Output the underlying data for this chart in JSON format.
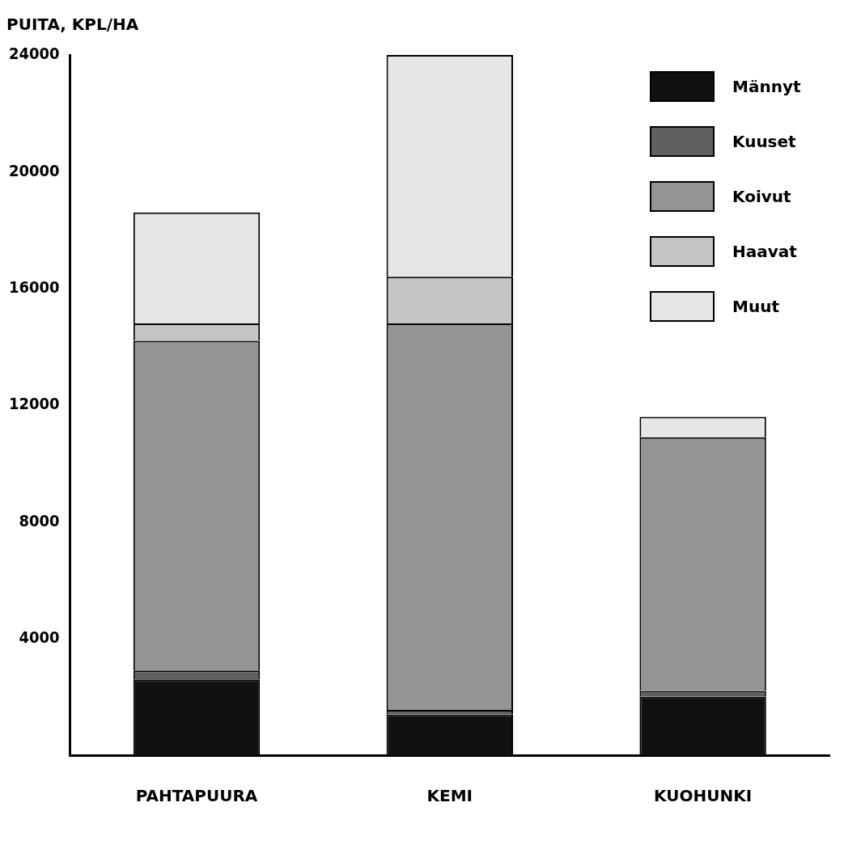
{
  "chart_data": {
    "type": "bar",
    "stacked": true,
    "ylabel": "PUITA, KPL/HA",
    "categories": [
      "PAHTAPUURA",
      "KEMI",
      "KUOHUNKI"
    ],
    "series": [
      {
        "name": "Männyt",
        "color": "#111111",
        "values": [
          2600,
          1400,
          2000
        ]
      },
      {
        "name": "Kuuset",
        "color": "#606060",
        "values": [
          300,
          150,
          200
        ]
      },
      {
        "name": "Koivut",
        "color": "#959595",
        "values": [
          11300,
          13250,
          8700
        ]
      },
      {
        "name": "Haavat",
        "color": "#c4c4c4",
        "values": [
          600,
          1600,
          0
        ]
      },
      {
        "name": "Muut",
        "color": "#e6e6e6",
        "values": [
          3800,
          7600,
          700
        ]
      }
    ],
    "ylim": [
      0,
      24000
    ],
    "yticks": [
      4000,
      8000,
      12000,
      16000,
      20000,
      24000
    ],
    "grid": false,
    "legend": "top right"
  }
}
